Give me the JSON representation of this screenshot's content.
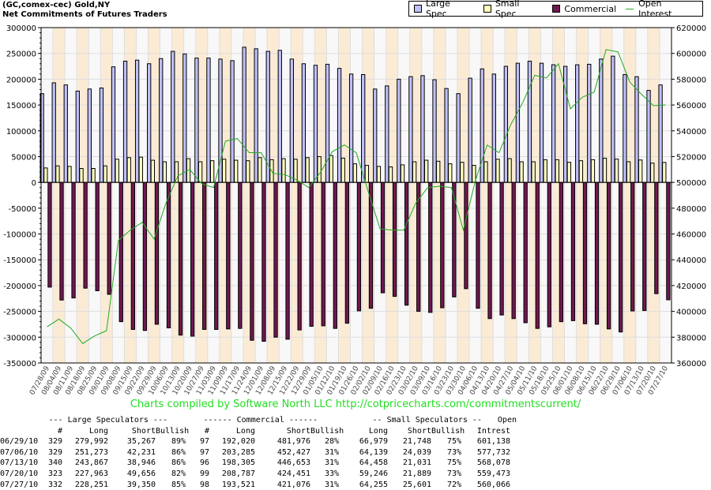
{
  "title": {
    "line1": "(GC,comex-cec) Gold,NY",
    "line2": "Net Commitments of Futures Traders"
  },
  "colors": {
    "large_spec": "#c0c0f8",
    "small_spec": "#ffffc0",
    "commercial": "#701850",
    "open_interest": "#22aa22",
    "stripe": "#fbebd5",
    "plot_bg": "#f8f8f8"
  },
  "chart_data": {
    "type": "bar",
    "legend_position": "top-right",
    "grid": true,
    "ylim": [
      -350000,
      300000
    ],
    "y2lim": [
      360000,
      620000
    ],
    "yticks": [
      300000,
      250000,
      200000,
      150000,
      100000,
      50000,
      0,
      -50000,
      -100000,
      -150000,
      -200000,
      -250000,
      -300000,
      -350000
    ],
    "y2ticks": [
      620000,
      600000,
      580000,
      560000,
      540000,
      520000,
      500000,
      480000,
      460000,
      440000,
      420000,
      400000,
      380000,
      360000
    ],
    "categories": [
      "07/28/09",
      "08/04/09",
      "08/11/09",
      "08/18/09",
      "08/25/09",
      "09/01/09",
      "09/08/09",
      "09/15/09",
      "09/22/09",
      "09/29/09",
      "10/06/09",
      "10/13/09",
      "10/20/09",
      "10/27/09",
      "11/03/09",
      "11/09/09",
      "11/17/09",
      "11/24/09",
      "12/01/09",
      "12/08/09",
      "12/15/09",
      "12/22/09",
      "12/29/09",
      "01/05/10",
      "01/12/10",
      "01/19/10",
      "01/26/10",
      "02/02/10",
      "02/09/10",
      "02/16/10",
      "02/23/10",
      "03/02/10",
      "03/09/10",
      "03/16/10",
      "03/23/10",
      "03/30/10",
      "04/06/10",
      "04/13/10",
      "04/20/10",
      "04/27/10",
      "05/04/10",
      "05/11/10",
      "05/18/10",
      "05/25/10",
      "06/01/10",
      "06/08/10",
      "06/15/10",
      "06/22/10",
      "06/29/10",
      "07/06/10",
      "07/13/10",
      "07/20/10",
      "07/27/10"
    ],
    "series": [
      {
        "name": "Large Spec",
        "axis": "left",
        "kind": "bar",
        "values": [
          172000,
          193000,
          189000,
          177000,
          181000,
          183000,
          224000,
          235000,
          237000,
          230000,
          240000,
          254000,
          249000,
          241000,
          241000,
          239000,
          236000,
          262000,
          259000,
          254000,
          256000,
          239000,
          230000,
          227000,
          229000,
          221000,
          210000,
          209000,
          181000,
          187000,
          200000,
          205000,
          207000,
          199000,
          182000,
          172000,
          202000,
          220000,
          210000,
          225000,
          231000,
          235000,
          231000,
          228000,
          225000,
          228000,
          229000,
          239000,
          244725,
          209042,
          204921,
          178307,
          188901
        ]
      },
      {
        "name": "Small Spec",
        "axis": "left",
        "kind": "bar",
        "values": [
          28000,
          32000,
          31000,
          27000,
          27000,
          32000,
          45000,
          48000,
          49000,
          43000,
          40000,
          40000,
          46000,
          40000,
          42000,
          45000,
          43000,
          42000,
          48000,
          44000,
          46000,
          45000,
          48000,
          50000,
          52000,
          47000,
          36000,
          33000,
          31000,
          30000,
          34000,
          40000,
          43000,
          41000,
          36000,
          39000,
          33000,
          40000,
          45000,
          46000,
          40000,
          40000,
          44000,
          44000,
          39000,
          42000,
          44000,
          47000,
          45231,
          40100,
          43427,
          37357,
          38654
        ]
      },
      {
        "name": "Commercial",
        "axis": "left",
        "kind": "bar",
        "values": [
          -203000,
          -228000,
          -224000,
          -205000,
          -210000,
          -217000,
          -270000,
          -285000,
          -287000,
          -275000,
          -282000,
          -296000,
          -298000,
          -285000,
          -285000,
          -284000,
          -283000,
          -306000,
          -308000,
          -300000,
          -304000,
          -286000,
          -279000,
          -278000,
          -283000,
          -273000,
          -249000,
          -244000,
          -214000,
          -221000,
          -238000,
          -250000,
          -252000,
          -243000,
          -222000,
          -206000,
          -244000,
          -264000,
          -257000,
          -264000,
          -272000,
          -283000,
          -280000,
          -270000,
          -268000,
          -274000,
          -275000,
          -284000,
          -289956,
          -249142,
          -248348,
          -215664,
          -227555
        ]
      },
      {
        "name": "Open Interest",
        "axis": "right",
        "kind": "line",
        "values": [
          388000,
          394000,
          387000,
          375000,
          381000,
          385000,
          455000,
          463000,
          469000,
          456000,
          484000,
          505000,
          510000,
          499000,
          496000,
          532000,
          534000,
          523000,
          523000,
          507000,
          506000,
          502000,
          496000,
          508000,
          524000,
          529000,
          523000,
          493000,
          464000,
          463000,
          463000,
          484000,
          496000,
          497000,
          496000,
          463000,
          501000,
          529000,
          523000,
          545000,
          562000,
          583000,
          581000,
          592000,
          557000,
          566000,
          570000,
          603000,
          601138,
          577732,
          568078,
          559473,
          560066
        ]
      }
    ]
  },
  "credit": "Charts compiled by Software North LLC  http://cotpricecharts.com/commitmentscurrent/",
  "table": {
    "group_headers": [
      "--- Large Speculators ---",
      "------ Commercial ------",
      "-- Small Speculators --",
      "Open"
    ],
    "col_headers": [
      "#",
      "Long",
      "Short",
      "Bullish",
      "#",
      "Long",
      "Short",
      "Bullish",
      "Long",
      "Short",
      "Bullish",
      "Intrest"
    ],
    "rows": [
      [
        "06/29/10",
        "329",
        "279,992",
        "35,267",
        "89%",
        "97",
        "192,020",
        "481,976",
        "28%",
        "66,979",
        "21,748",
        "75%",
        "601,138"
      ],
      [
        "07/06/10",
        "329",
        "251,273",
        "42,231",
        "86%",
        "97",
        "203,285",
        "452,427",
        "31%",
        "64,139",
        "24,039",
        "73%",
        "577,732"
      ],
      [
        "07/13/10",
        "340",
        "243,867",
        "38,946",
        "86%",
        "96",
        "198,305",
        "446,653",
        "31%",
        "64,458",
        "21,031",
        "75%",
        "568,078"
      ],
      [
        "07/20/10",
        "323",
        "227,963",
        "49,656",
        "82%",
        "99",
        "208,787",
        "424,451",
        "33%",
        "59,246",
        "21,889",
        "73%",
        "559,473"
      ],
      [
        "07/27/10",
        "332",
        "228,251",
        "39,350",
        "85%",
        "98",
        "193,521",
        "421,076",
        "31%",
        "64,255",
        "25,601",
        "72%",
        "560,066"
      ]
    ]
  }
}
